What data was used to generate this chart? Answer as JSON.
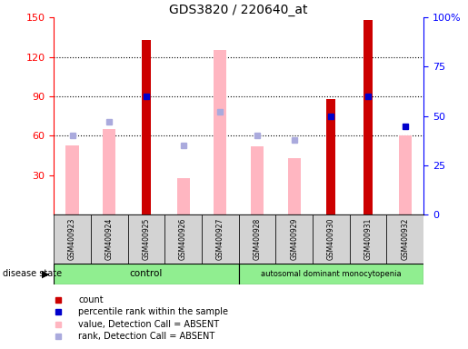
{
  "title": "GDS3820 / 220640_at",
  "samples": [
    "GSM400923",
    "GSM400924",
    "GSM400925",
    "GSM400926",
    "GSM400927",
    "GSM400928",
    "GSM400929",
    "GSM400930",
    "GSM400931",
    "GSM400932"
  ],
  "count_values": [
    0,
    0,
    133,
    0,
    0,
    0,
    0,
    88,
    148,
    0
  ],
  "absent_value": [
    53,
    65,
    0,
    28,
    125,
    52,
    43,
    0,
    0,
    60
  ],
  "percentile_rank": [
    null,
    null,
    60,
    null,
    null,
    null,
    null,
    50,
    60,
    45
  ],
  "absent_rank": [
    40,
    47,
    null,
    35,
    52,
    40,
    38,
    null,
    null,
    null
  ],
  "ylim_left": [
    0,
    150
  ],
  "ylim_right": [
    0,
    100
  ],
  "yticks_left": [
    30,
    60,
    90,
    120,
    150
  ],
  "yticks_right": [
    0,
    25,
    50,
    75,
    100
  ],
  "yticklabels_right": [
    "0",
    "25",
    "50",
    "75",
    "100%"
  ],
  "control_samples": 5,
  "disease_label": "autosomal dominant monocytopenia",
  "control_label": "control",
  "red_color": "#CC0000",
  "pink_color": "#FFB6C1",
  "blue_color": "#0000CC",
  "light_blue_color": "#AAAADD",
  "label_area_color": "#D3D3D3",
  "green_color": "#90EE90",
  "bar_width": 0.5
}
